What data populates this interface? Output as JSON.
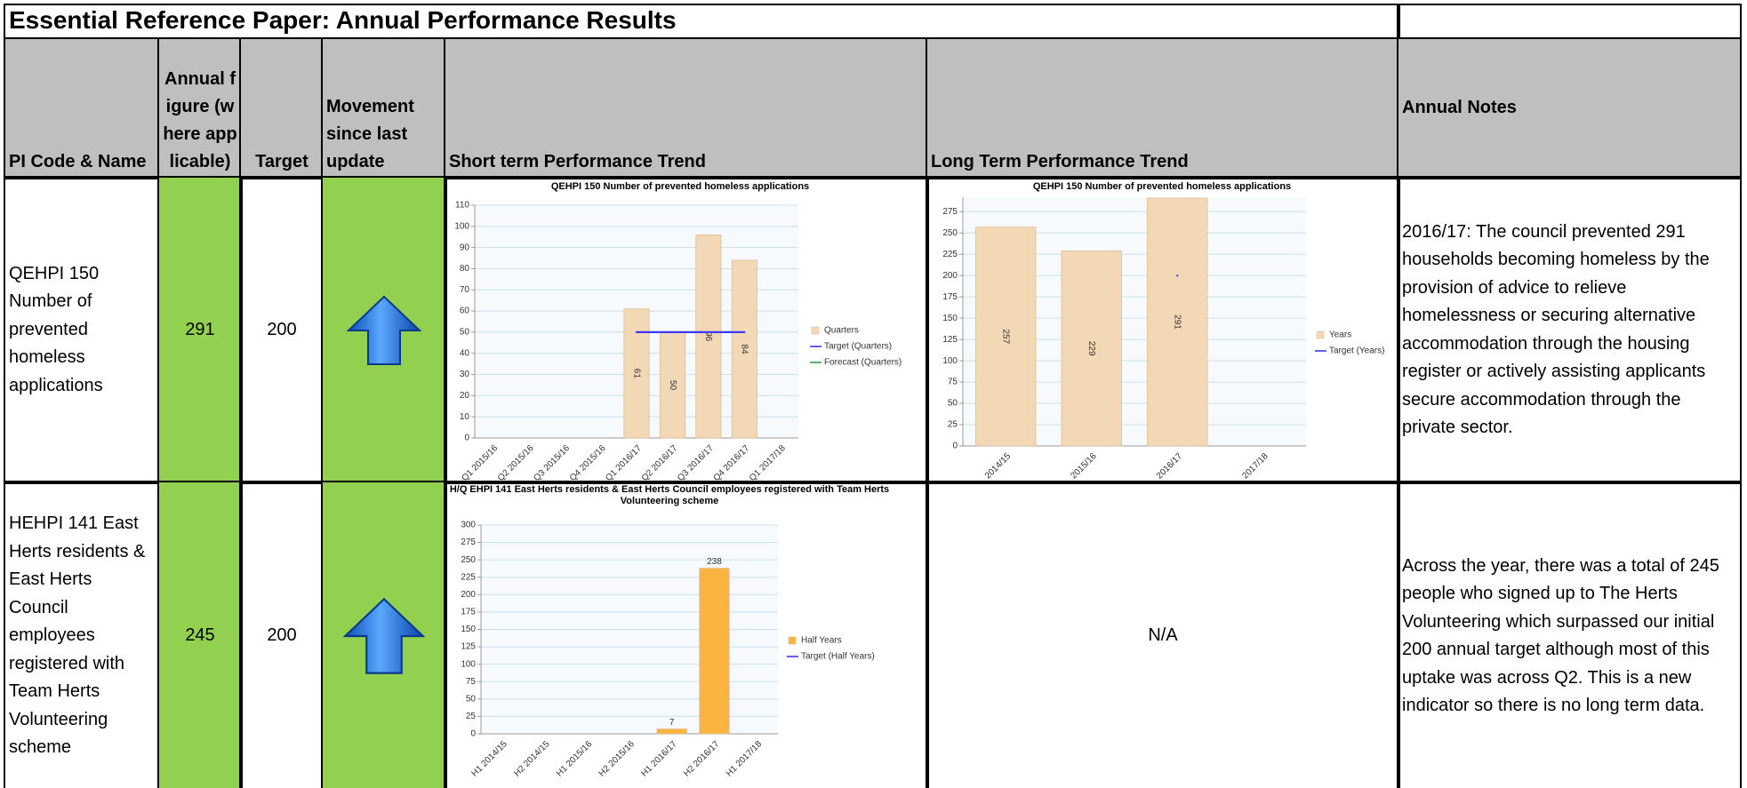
{
  "title": "Essential Reference Paper: Annual Performance Results",
  "headers": [
    "PI Code & Name",
    "Annual figure (where applicable)",
    "Target",
    "Movement since last update",
    "Short term Performance Trend",
    "Long Term Performance Trend",
    "Annual Notes"
  ],
  "rows": [
    {
      "code_name": "QEHPI 150 Number of prevented homeless applications",
      "annual": 291,
      "target": 200,
      "short_trend": {
        "type": "bar",
        "title": "QEHPI 150 Number of prevented homeless applications",
        "categories": [
          "Q1 2015/16",
          "Q2 2015/16",
          "Q3 2015/16",
          "Q4 2015/16",
          "Q1 2016/17",
          "Q2 2016/17",
          "Q3 2016/17",
          "Q4 2016/17",
          "Q1 2017/18"
        ],
        "series": [
          {
            "name": "Quarters",
            "type": "bar",
            "color": "#f3d8b6",
            "values": [
              null,
              null,
              null,
              null,
              61,
              50,
              96,
              84,
              null
            ]
          },
          {
            "name": "Target (Quarters)",
            "type": "line",
            "color": "#3a3aff",
            "values": [
              null,
              null,
              null,
              null,
              50,
              50,
              50,
              50,
              null
            ]
          },
          {
            "name": "Forecast (Quarters)",
            "type": "line",
            "color": "#2e9e3a",
            "values": [
              null,
              null,
              null,
              null,
              null,
              null,
              null,
              null,
              null
            ]
          }
        ],
        "ylim": [
          0,
          110
        ],
        "yticks": [
          0,
          10,
          20,
          30,
          40,
          50,
          60,
          70,
          80,
          90,
          100,
          110
        ],
        "grid": true,
        "value_label_position": "inside"
      },
      "long_trend": {
        "type": "bar",
        "title": "QEHPI 150 Number of prevented homeless applications",
        "categories": [
          "2014/15",
          "2015/16",
          "2016/17",
          "2017/18"
        ],
        "series": [
          {
            "name": "Years",
            "type": "bar",
            "color": "#f3d8b6",
            "values": [
              257,
              229,
              291,
              null
            ]
          },
          {
            "name": "Target (Years)",
            "type": "line",
            "color": "#3a3aff",
            "values": [
              null,
              null,
              200,
              null
            ]
          }
        ],
        "ylim": [
          0,
          292
        ],
        "yticks": [
          0,
          25,
          50,
          75,
          100,
          125,
          150,
          175,
          200,
          225,
          250,
          275
        ],
        "grid": true,
        "value_label_position": "inside"
      },
      "notes": "2016/17:   The council prevented 291 households becoming homeless by the provision of advice to relieve homelessness or securing alternative accommodation through the housing register or actively assisting applicants secure accommodation through the private sector."
    },
    {
      "code_name": "HEHPI 141 East Herts residents & East Herts Council employees registered with Team Herts Volunteering scheme",
      "annual": 245,
      "target": 200,
      "short_trend": {
        "type": "bar",
        "title": "H/Q EHPI 141 East Herts residents & East Herts Council employees registered with Team Herts Volunteering scheme",
        "categories": [
          "H1 2014/15",
          "H2 2014/15",
          "H1 2015/16",
          "H2 2015/16",
          "H1 2016/17",
          "H2 2016/17",
          "H1 2017/18"
        ],
        "series": [
          {
            "name": "Half Years",
            "type": "bar",
            "color": "#fbb440",
            "values": [
              null,
              null,
              null,
              null,
              7,
              238,
              null
            ]
          },
          {
            "name": "Target (Half Years)",
            "type": "line",
            "color": "#3a3aff",
            "values": [
              null,
              null,
              null,
              null,
              null,
              null,
              null
            ]
          }
        ],
        "ylim": [
          0,
          300
        ],
        "yticks": [
          0,
          25,
          50,
          75,
          100,
          125,
          150,
          175,
          200,
          225,
          250,
          275,
          300
        ],
        "grid": true,
        "value_label_position": "above"
      },
      "long_trend": "N/A",
      "notes": "Across the year, there was a total of 245 people who signed up to The Herts Volunteering which surpassed our initial 200 annual target although most of this uptake was across Q2. This is a new indicator so there is no long term data."
    }
  ]
}
